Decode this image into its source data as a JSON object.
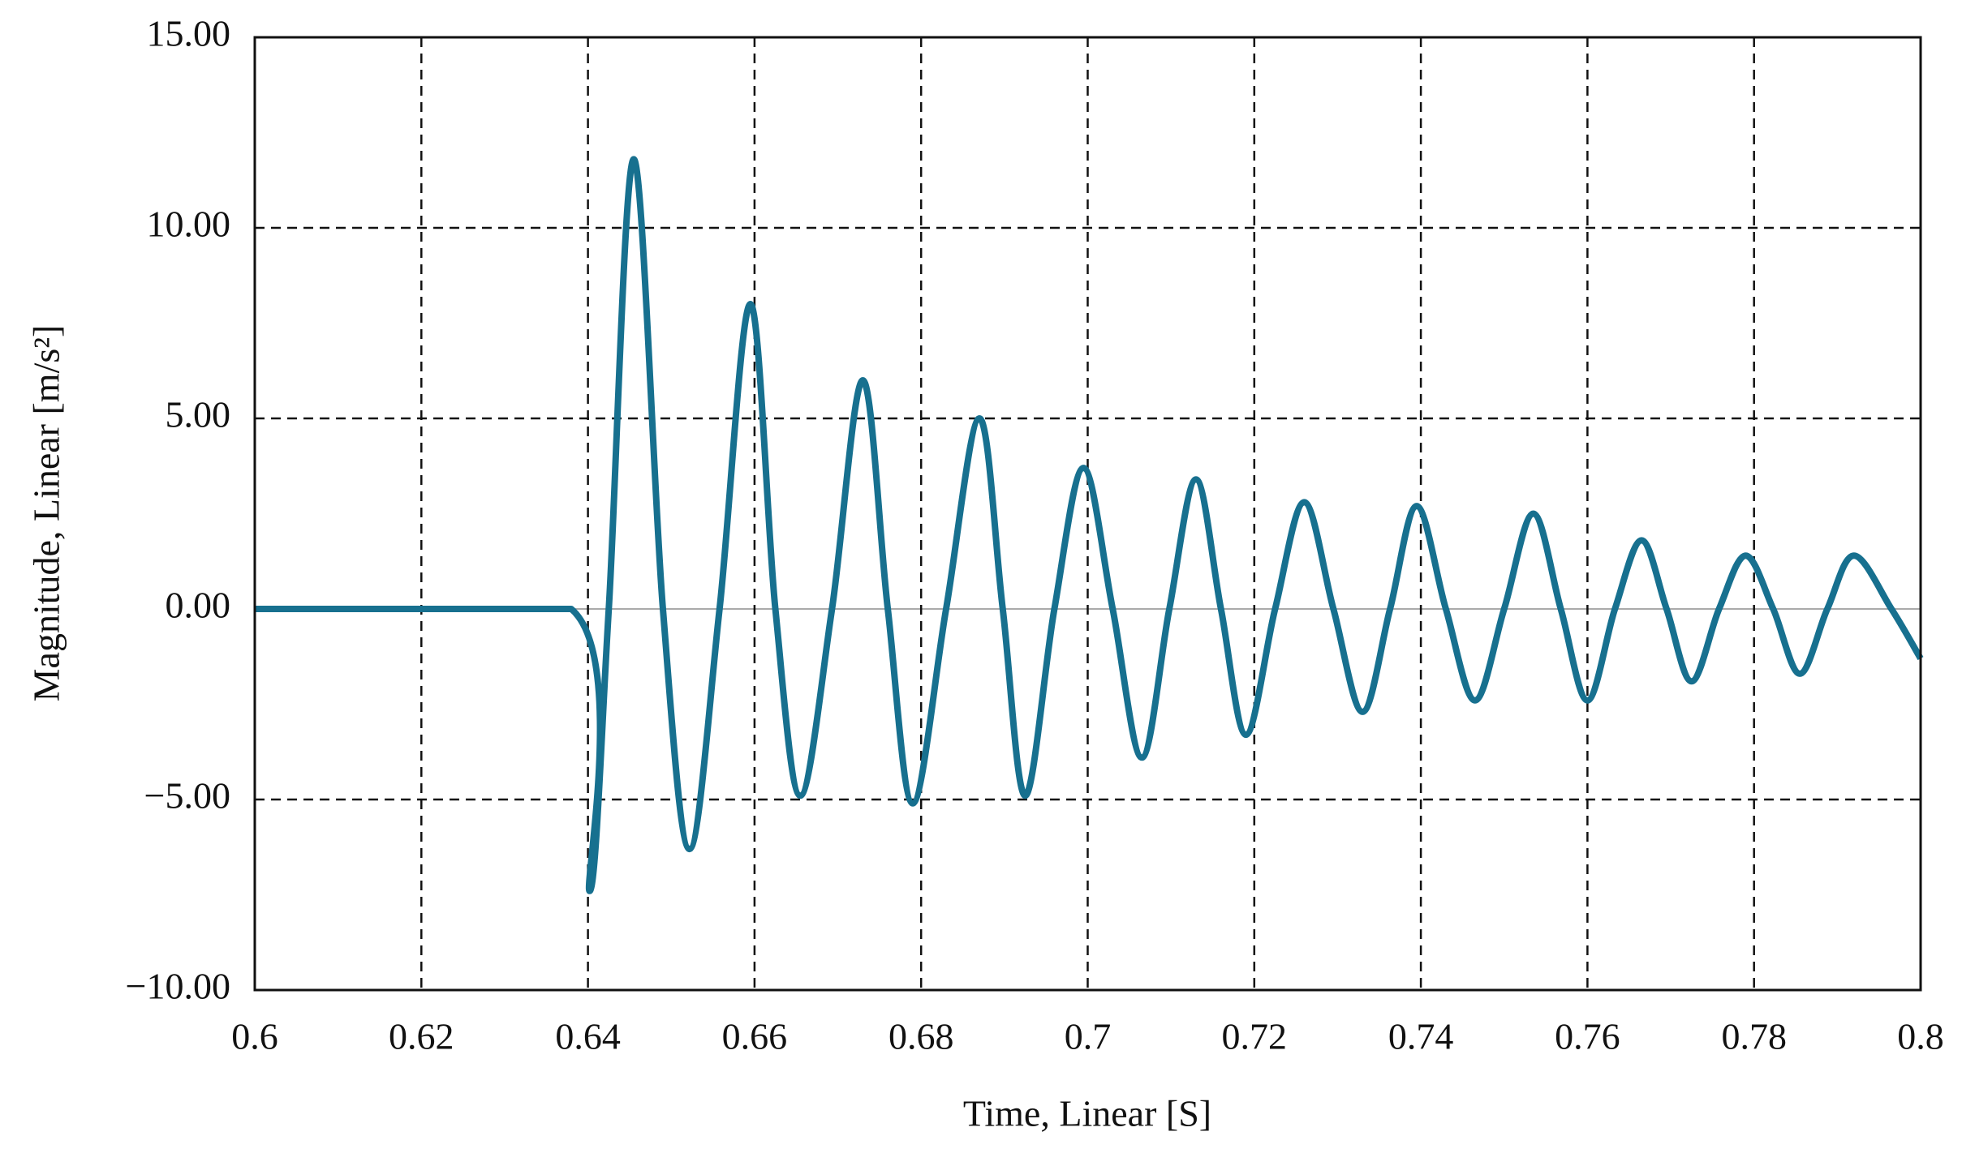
{
  "chart_data": {
    "type": "line",
    "x_label": "Time, Linear [S]",
    "y_label": "Magnitude, Linear [m/s²]",
    "x": [
      0.6,
      0.638,
      0.6402,
      0.6425,
      0.6455,
      0.649,
      0.6522,
      0.6558,
      0.6595,
      0.6625,
      0.6655,
      0.6693,
      0.673,
      0.676,
      0.679,
      0.683,
      0.687,
      0.6898,
      0.6925,
      0.696,
      0.6995,
      0.703,
      0.7065,
      0.7098,
      0.713,
      0.716,
      0.719,
      0.7225,
      0.726,
      0.7295,
      0.733,
      0.7363,
      0.7395,
      0.743,
      0.7465,
      0.75,
      0.7535,
      0.7568,
      0.76,
      0.7633,
      0.7665,
      0.7695,
      0.7725,
      0.7758,
      0.779,
      0.7823,
      0.7855,
      0.7888,
      0.792,
      0.7965,
      0.8
    ],
    "series": [
      {
        "color": "#17708f",
        "values": [
          0,
          0,
          -7.4,
          0,
          11.8,
          0,
          -6.3,
          0,
          8.0,
          0,
          -4.9,
          0,
          6.0,
          0,
          -5.1,
          0,
          5.0,
          0,
          -4.9,
          0,
          3.7,
          0,
          -3.9,
          0,
          3.4,
          0,
          -3.3,
          0,
          2.8,
          0,
          -2.7,
          0,
          2.7,
          0,
          -2.4,
          0,
          2.5,
          0,
          -2.4,
          0,
          1.8,
          0,
          -1.9,
          0,
          1.4,
          0,
          -1.7,
          0,
          1.4,
          0,
          -1.3
        ]
      }
    ],
    "xlim": [
      0.6,
      0.8
    ],
    "xticks": [
      0.6,
      0.62,
      0.64,
      0.66,
      0.68,
      0.7,
      0.72,
      0.74,
      0.76,
      0.78,
      0.8
    ],
    "ylim": [
      -10,
      15
    ],
    "yticks": [
      {
        "value": -10,
        "label": "−10.00"
      },
      {
        "value": -5,
        "label": "−5.00"
      },
      {
        "value": 0,
        "label": "0.00"
      },
      {
        "value": 5,
        "label": "5.00"
      },
      {
        "value": 10,
        "label": "10.00"
      },
      {
        "value": 15,
        "label": "15.00"
      }
    ],
    "grid": true
  }
}
